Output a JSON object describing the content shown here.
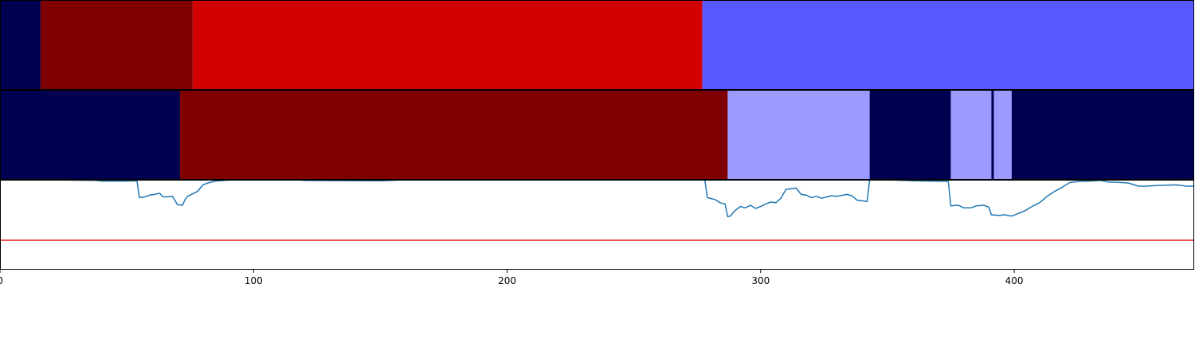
{
  "chart_data": [
    {
      "type": "heatmap",
      "xlim": [
        0,
        471
      ],
      "segments": [
        {
          "start": 0,
          "end": 16,
          "color": "#000050"
        },
        {
          "start": 16,
          "end": 76,
          "color": "#7f0000"
        },
        {
          "start": 76,
          "end": 277,
          "color": "#d20000"
        },
        {
          "start": 277,
          "end": 471,
          "color": "#5858ff"
        }
      ]
    },
    {
      "type": "heatmap",
      "xlim": [
        0,
        471
      ],
      "segments": [
        {
          "start": 0,
          "end": 71,
          "color": "#000050"
        },
        {
          "start": 71,
          "end": 287,
          "color": "#7f0000"
        },
        {
          "start": 287,
          "end": 343,
          "color": "#9a9aff"
        },
        {
          "start": 343,
          "end": 375,
          "color": "#000050"
        },
        {
          "start": 375,
          "end": 391,
          "color": "#9a9aff"
        },
        {
          "start": 391,
          "end": 392,
          "color": "#000050"
        },
        {
          "start": 392,
          "end": 399,
          "color": "#9a9aff"
        },
        {
          "start": 399,
          "end": 471,
          "color": "#000050"
        }
      ]
    },
    {
      "type": "line",
      "xlim": [
        0,
        471
      ],
      "ylim": [
        -0.4,
        1.0
      ],
      "line_color": "#1f77b4",
      "threshold": {
        "value": 0.05,
        "color": "#e31a1c"
      },
      "x_ticks": [
        0,
        100,
        200,
        300,
        400
      ],
      "x_tick_labels": [
        "0",
        "100",
        "200",
        "300",
        "400"
      ],
      "points": [
        [
          0,
          1.0
        ],
        [
          20,
          1.0
        ],
        [
          38,
          0.99
        ],
        [
          40,
          0.98
        ],
        [
          48,
          0.98
        ],
        [
          50,
          0.98
        ],
        [
          54,
          0.985
        ],
        [
          55,
          0.72
        ],
        [
          57,
          0.73
        ],
        [
          59,
          0.76
        ],
        [
          61,
          0.77
        ],
        [
          63,
          0.79
        ],
        [
          64,
          0.74
        ],
        [
          65,
          0.73
        ],
        [
          68,
          0.74
        ],
        [
          70,
          0.61
        ],
        [
          72,
          0.6
        ],
        [
          73,
          0.69
        ],
        [
          74,
          0.74
        ],
        [
          76,
          0.78
        ],
        [
          78,
          0.82
        ],
        [
          80,
          0.92
        ],
        [
          82,
          0.95
        ],
        [
          85,
          0.98
        ],
        [
          90,
          0.995
        ],
        [
          100,
          1.0
        ],
        [
          118,
          1.0
        ],
        [
          120,
          0.99
        ],
        [
          150,
          0.985
        ],
        [
          160,
          1.0
        ],
        [
          200,
          1.0
        ],
        [
          277,
          1.0
        ],
        [
          278,
          0.99
        ],
        [
          279,
          0.72
        ],
        [
          282,
          0.69
        ],
        [
          284,
          0.64
        ],
        [
          286,
          0.62
        ],
        [
          287,
          0.42
        ],
        [
          288,
          0.43
        ],
        [
          290,
          0.52
        ],
        [
          292,
          0.58
        ],
        [
          294,
          0.56
        ],
        [
          296,
          0.6
        ],
        [
          298,
          0.55
        ],
        [
          300,
          0.58
        ],
        [
          302,
          0.62
        ],
        [
          304,
          0.65
        ],
        [
          306,
          0.64
        ],
        [
          308,
          0.71
        ],
        [
          310,
          0.85
        ],
        [
          312,
          0.86
        ],
        [
          314,
          0.87
        ],
        [
          316,
          0.77
        ],
        [
          318,
          0.76
        ],
        [
          320,
          0.72
        ],
        [
          322,
          0.74
        ],
        [
          324,
          0.71
        ],
        [
          326,
          0.73
        ],
        [
          328,
          0.75
        ],
        [
          330,
          0.74
        ],
        [
          334,
          0.77
        ],
        [
          336,
          0.75
        ],
        [
          338,
          0.68
        ],
        [
          340,
          0.67
        ],
        [
          342,
          0.66
        ],
        [
          343,
          1.0
        ],
        [
          350,
          1.0
        ],
        [
          360,
          0.985
        ],
        [
          374,
          0.975
        ],
        [
          375,
          0.59
        ],
        [
          378,
          0.6
        ],
        [
          380,
          0.56
        ],
        [
          383,
          0.56
        ],
        [
          385,
          0.59
        ],
        [
          388,
          0.6
        ],
        [
          390,
          0.57
        ],
        [
          391,
          0.45
        ],
        [
          394,
          0.44
        ],
        [
          396,
          0.45
        ],
        [
          399,
          0.43
        ],
        [
          401,
          0.46
        ],
        [
          404,
          0.51
        ],
        [
          407,
          0.58
        ],
        [
          410,
          0.64
        ],
        [
          413,
          0.74
        ],
        [
          416,
          0.82
        ],
        [
          418,
          0.86
        ],
        [
          422,
          0.96
        ],
        [
          426,
          0.975
        ],
        [
          430,
          0.98
        ],
        [
          434,
          0.99
        ],
        [
          437,
          0.965
        ],
        [
          441,
          0.96
        ],
        [
          445,
          0.95
        ],
        [
          449,
          0.9
        ],
        [
          452,
          0.9
        ],
        [
          456,
          0.91
        ],
        [
          460,
          0.915
        ],
        [
          464,
          0.92
        ],
        [
          468,
          0.9
        ],
        [
          471,
          0.9
        ]
      ]
    }
  ]
}
